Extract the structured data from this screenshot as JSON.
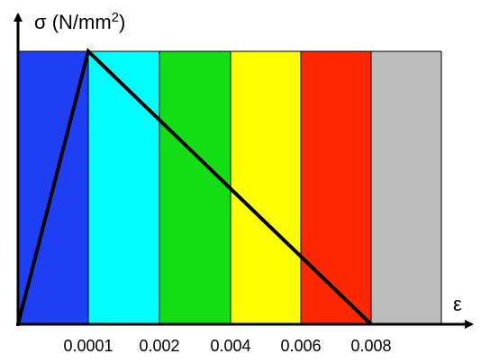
{
  "chart_data": {
    "type": "line",
    "ylabel_base": "σ (N/mm",
    "ylabel_sup": "2",
    "ylabel_end": ")",
    "xlabel": "ε",
    "bands": [
      {
        "color": "#1f3ff5"
      },
      {
        "color": "#00ffff"
      },
      {
        "color": "#13dd13"
      },
      {
        "color": "#ffff00"
      },
      {
        "color": "#ff2600"
      },
      {
        "color": "#bdbdbd"
      }
    ],
    "tick_labels": [
      "0.0001",
      "0.002",
      "0.004",
      "0.006",
      "0.008"
    ],
    "stroke_color": "#000000",
    "series": [
      {
        "x": [
          "0",
          "0.0001",
          "0.008"
        ],
        "y": [
          "0",
          "peak",
          "0"
        ]
      }
    ]
  }
}
